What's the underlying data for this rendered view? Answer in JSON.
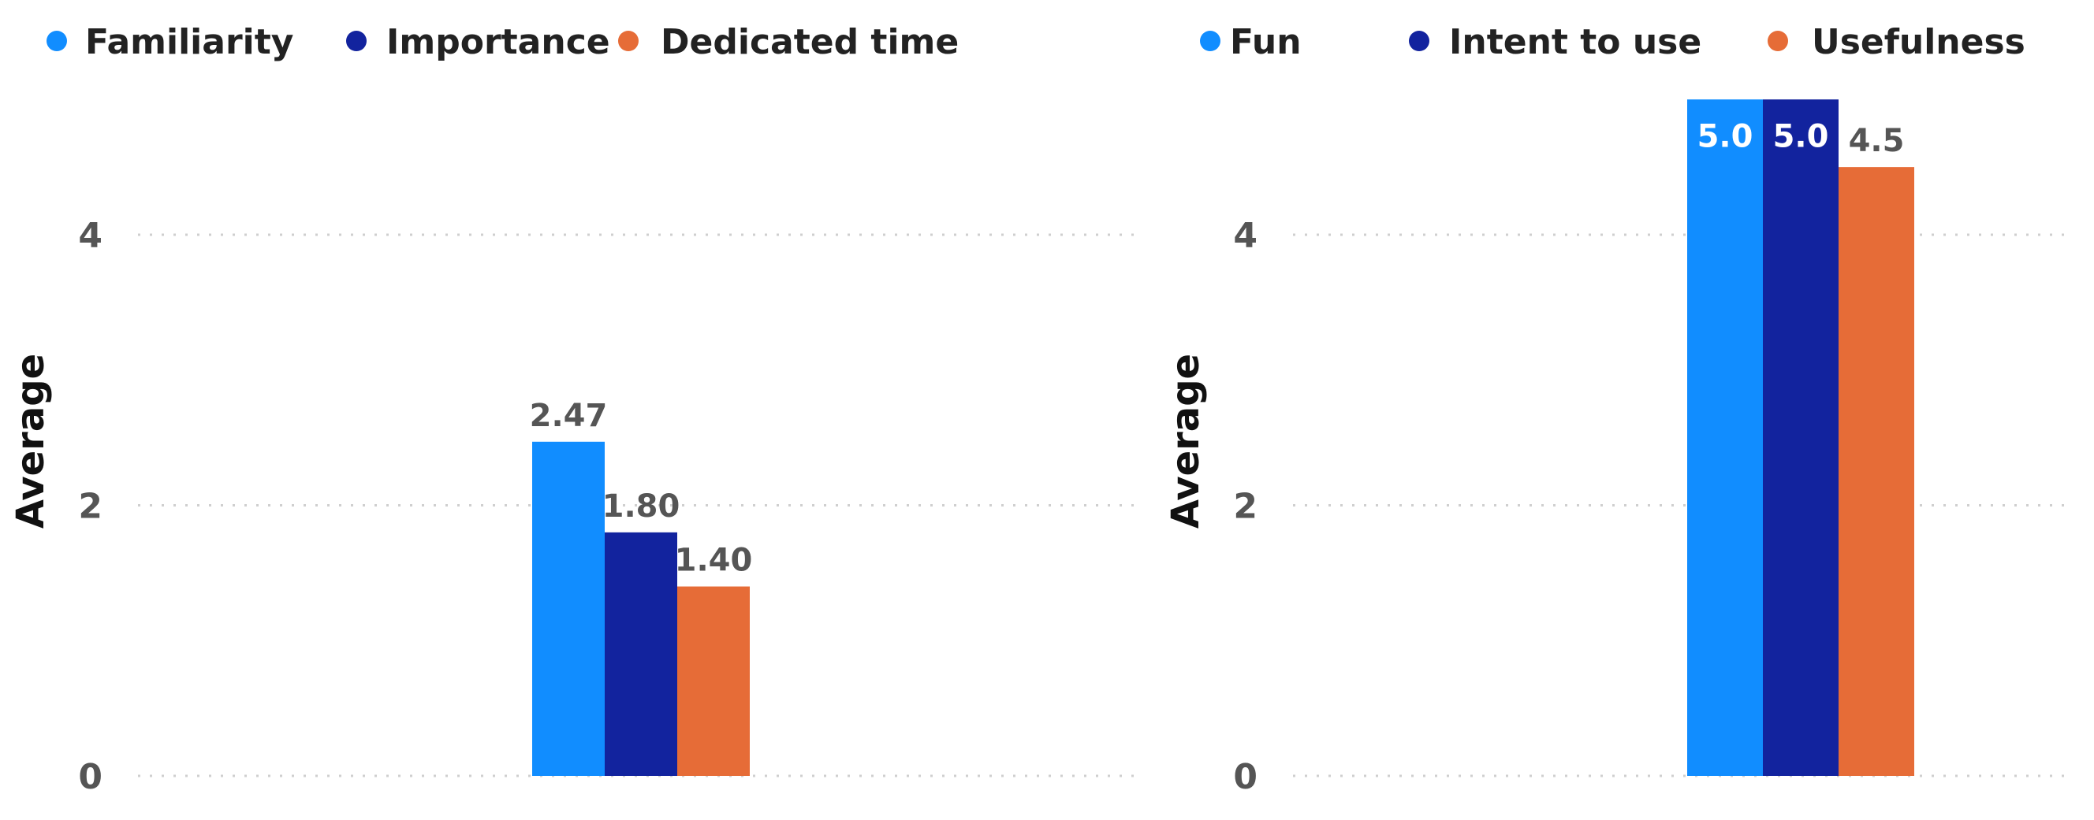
{
  "chart_data": [
    {
      "type": "bar",
      "title": "",
      "xlabel": "",
      "ylabel": "Average",
      "ylim": [
        0,
        5
      ],
      "yticks": [
        0,
        2,
        4
      ],
      "grid": true,
      "legend_position": "top-left",
      "value_format_decimals": 2,
      "series": [
        {
          "name": "Familiarity",
          "values": [
            2.47
          ],
          "color": "#118DFF",
          "label_inside": false
        },
        {
          "name": "Importance",
          "values": [
            1.8
          ],
          "color": "#12239E",
          "label_inside": false
        },
        {
          "name": "Dedicated time",
          "values": [
            1.4
          ],
          "color": "#E66C37",
          "label_inside": false
        }
      ]
    },
    {
      "type": "bar",
      "title": "",
      "xlabel": "",
      "ylabel": "Average",
      "ylim": [
        0,
        5
      ],
      "yticks": [
        0,
        2,
        4
      ],
      "grid": true,
      "legend_position": "top-left",
      "value_format_decimals": 1,
      "series": [
        {
          "name": "Fun",
          "values": [
            5.0
          ],
          "color": "#118DFF",
          "label_inside": true
        },
        {
          "name": "Intent to use",
          "values": [
            5.0
          ],
          "color": "#12239E",
          "label_inside": true
        },
        {
          "name": "Usefulness",
          "values": [
            4.5
          ],
          "color": "#E66C37",
          "label_inside": false
        }
      ]
    }
  ]
}
